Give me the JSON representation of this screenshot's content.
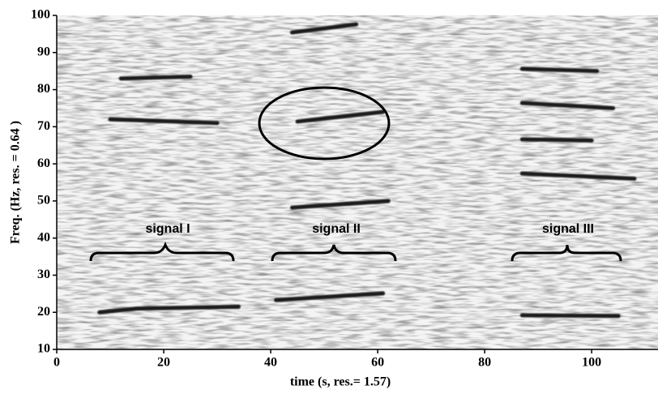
{
  "chart_data": {
    "type": "spectrogram",
    "xlabel": "time (s, res.= 1.57)",
    "ylabel": "Freq. (Hz, res. = 0.64 )",
    "xlim": [
      0,
      112.4
    ],
    "xticks": [
      0,
      20,
      40,
      60,
      80,
      100
    ],
    "ylim": [
      10,
      100
    ],
    "yticks": [
      10,
      20,
      30,
      40,
      50,
      60,
      70,
      80,
      90,
      100
    ],
    "color": "#1e1e1e",
    "tracks": [
      {
        "x": [
          8,
          15,
          34
        ],
        "values": [
          20,
          21,
          21.5
        ]
      },
      {
        "x": [
          10,
          30
        ],
        "values": [
          72,
          71
        ]
      },
      {
        "x": [
          12,
          25
        ],
        "values": [
          83,
          83.5
        ]
      },
      {
        "x": [
          41,
          61
        ],
        "values": [
          23.3,
          25.1
        ]
      },
      {
        "x": [
          44,
          62
        ],
        "values": [
          48.2,
          50
        ]
      },
      {
        "x": [
          45,
          61
        ],
        "values": [
          71.4,
          74
        ]
      },
      {
        "x": [
          44,
          56
        ],
        "values": [
          95.4,
          97.6
        ]
      },
      {
        "x": [
          87,
          105
        ],
        "values": [
          19.2,
          19
        ]
      },
      {
        "x": [
          87,
          108
        ],
        "values": [
          57.4,
          56
        ]
      },
      {
        "x": [
          87,
          100
        ],
        "values": [
          66.6,
          66.3
        ]
      },
      {
        "x": [
          87,
          104
        ],
        "values": [
          76.4,
          75
        ]
      },
      {
        "x": [
          87,
          101
        ],
        "values": [
          85.6,
          85
        ]
      }
    ],
    "annotations": [
      "signal I",
      "signal II",
      "signal III"
    ]
  }
}
